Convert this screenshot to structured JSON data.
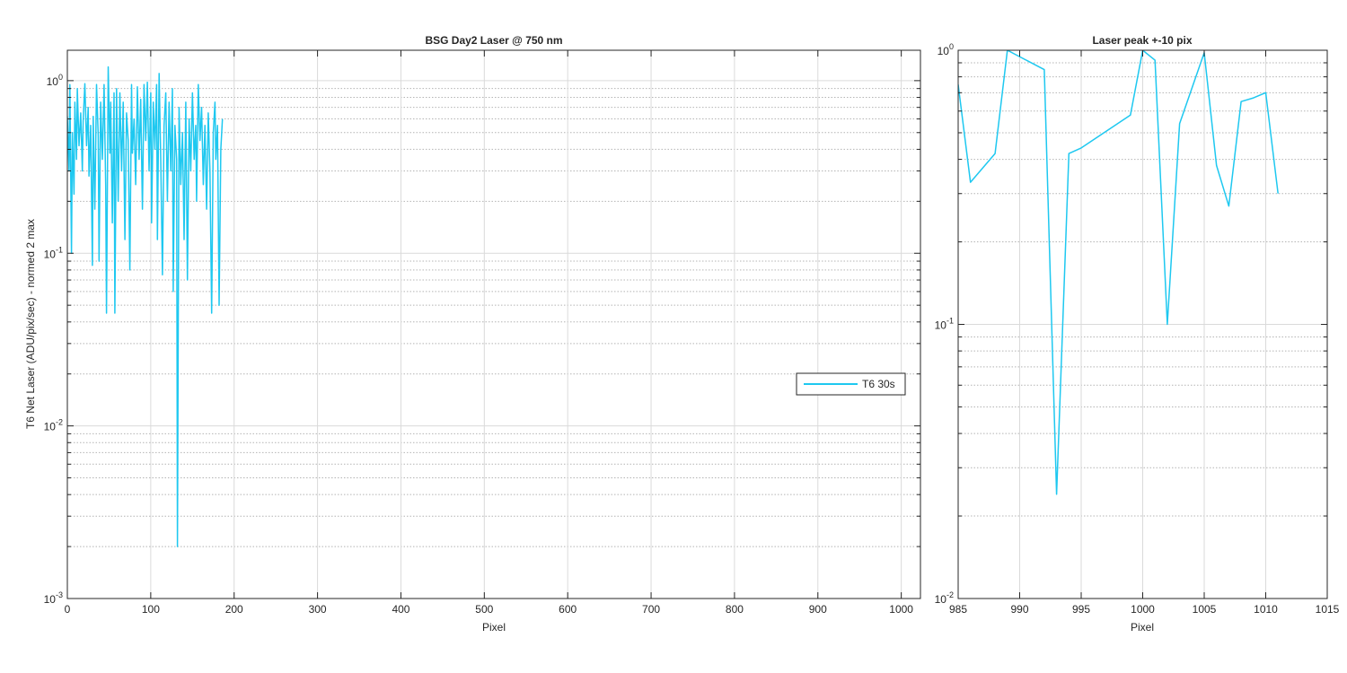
{
  "colors": {
    "series": "#1ec8f0",
    "major_grid": "#dadada",
    "minor_grid": "#b4b4b4",
    "axis": "#262626",
    "background": "#ffffff"
  },
  "chart_data": [
    {
      "type": "line",
      "title": "BSG  Day2 Laser @ 750 nm",
      "xlabel": "Pixel",
      "ylabel": "T6 Net Laser (ADU/pix/sec) - normed 2 max",
      "xlim": [
        0,
        1023
      ],
      "ylim": [
        0.001,
        1.5
      ],
      "yscale": "log",
      "grid": "on",
      "minor_grid": "on",
      "legend_position": "right",
      "x_ticks": [
        0,
        100,
        200,
        300,
        400,
        500,
        600,
        700,
        800,
        900,
        1000
      ],
      "y_ticks": [
        {
          "value": 0.001,
          "label_base": "10",
          "label_exp": "-3"
        },
        {
          "value": 0.01,
          "label_base": "10",
          "label_exp": "-2"
        },
        {
          "value": 0.1,
          "label_base": "10",
          "label_exp": "-1"
        },
        {
          "value": 1,
          "label_base": "10",
          "label_exp": "0"
        }
      ],
      "series": [
        {
          "name": "T6 30s",
          "points": [
            [
              0,
              0.62
            ],
            [
              2,
              0.3
            ],
            [
              3,
              0.95
            ],
            [
              5,
              0.1
            ],
            [
              6,
              0.5
            ],
            [
              8,
              0.22
            ],
            [
              9,
              0.75
            ],
            [
              11,
              0.35
            ],
            [
              12,
              0.9
            ],
            [
              14,
              0.42
            ],
            [
              16,
              0.65
            ],
            [
              18,
              0.3
            ],
            [
              19,
              0.58
            ],
            [
              21,
              0.96
            ],
            [
              23,
              0.42
            ],
            [
              25,
              0.7
            ],
            [
              26,
              0.28
            ],
            [
              28,
              0.55
            ],
            [
              30,
              0.085
            ],
            [
              31,
              0.62
            ],
            [
              33,
              0.18
            ],
            [
              35,
              0.95
            ],
            [
              37,
              0.48
            ],
            [
              38,
              0.09
            ],
            [
              40,
              0.75
            ],
            [
              42,
              0.35
            ],
            [
              44,
              0.95
            ],
            [
              46,
              0.25
            ],
            [
              47,
              0.045
            ],
            [
              49,
              1.2
            ],
            [
              51,
              0.38
            ],
            [
              52,
              0.75
            ],
            [
              54,
              0.15
            ],
            [
              56,
              0.85
            ],
            [
              57,
              0.045
            ],
            [
              59,
              0.9
            ],
            [
              61,
              0.2
            ],
            [
              63,
              0.85
            ],
            [
              65,
              0.3
            ],
            [
              67,
              0.75
            ],
            [
              69,
              0.12
            ],
            [
              71,
              0.65
            ],
            [
              73,
              0.45
            ],
            [
              75,
              0.08
            ],
            [
              77,
              0.95
            ],
            [
              78,
              0.38
            ],
            [
              80,
              0.6
            ],
            [
              82,
              0.25
            ],
            [
              84,
              0.92
            ],
            [
              86,
              0.35
            ],
            [
              88,
              0.78
            ],
            [
              90,
              0.18
            ],
            [
              92,
              0.95
            ],
            [
              94,
              0.45
            ],
            [
              96,
              0.98
            ],
            [
              98,
              0.3
            ],
            [
              100,
              0.85
            ],
            [
              101,
              0.15
            ],
            [
              103,
              0.75
            ],
            [
              105,
              0.4
            ],
            [
              107,
              0.95
            ],
            [
              108,
              0.12
            ],
            [
              110,
              1.1
            ],
            [
              112,
              0.35
            ],
            [
              114,
              0.075
            ],
            [
              116,
              0.55
            ],
            [
              118,
              0.85
            ],
            [
              120,
              0.2
            ],
            [
              122,
              0.75
            ],
            [
              124,
              0.3
            ],
            [
              126,
              0.9
            ],
            [
              127,
              0.06
            ],
            [
              129,
              0.55
            ],
            [
              131,
              0.35
            ],
            [
              132,
              0.002
            ],
            [
              134,
              0.7
            ],
            [
              136,
              0.25
            ],
            [
              138,
              0.5
            ],
            [
              140,
              0.12
            ],
            [
              142,
              0.75
            ],
            [
              144,
              0.07
            ],
            [
              146,
              0.6
            ],
            [
              148,
              0.3
            ],
            [
              150,
              0.85
            ],
            [
              152,
              0.35
            ],
            [
              154,
              0.55
            ],
            [
              155,
              0.2
            ],
            [
              157,
              0.95
            ],
            [
              159,
              0.45
            ],
            [
              161,
              0.7
            ],
            [
              163,
              0.25
            ],
            [
              165,
              0.55
            ],
            [
              167,
              0.18
            ],
            [
              169,
              0.65
            ],
            [
              171,
              0.3
            ],
            [
              173,
              0.045
            ],
            [
              175,
              0.5
            ],
            [
              177,
              0.75
            ],
            [
              178,
              0.35
            ],
            [
              180,
              0.55
            ],
            [
              182,
              0.05
            ],
            [
              184,
              0.4
            ],
            [
              186,
              0.6
            ]
          ]
        }
      ]
    },
    {
      "type": "line",
      "title": "Laser peak +-10 pix",
      "xlabel": "Pixel",
      "ylabel": "",
      "xlim": [
        985,
        1015
      ],
      "ylim": [
        0.01,
        1
      ],
      "yscale": "log",
      "grid": "on",
      "minor_grid": "on",
      "x_ticks": [
        985,
        990,
        995,
        1000,
        1005,
        1010,
        1015
      ],
      "y_ticks": [
        {
          "value": 0.01,
          "label_base": "10",
          "label_exp": "-2"
        },
        {
          "value": 0.1,
          "label_base": "10",
          "label_exp": "-1"
        },
        {
          "value": 1,
          "label_base": "10",
          "label_exp": "0"
        }
      ],
      "series": [
        {
          "name": "T6 30s",
          "points": [
            [
              985,
              0.75
            ],
            [
              986,
              0.33
            ],
            [
              988,
              0.42
            ],
            [
              989,
              1.0
            ],
            [
              992,
              0.85
            ],
            [
              993,
              0.024
            ],
            [
              994,
              0.42
            ],
            [
              995,
              0.44
            ],
            [
              999,
              0.58
            ],
            [
              1000,
              1.0
            ],
            [
              1001,
              0.92
            ],
            [
              1002,
              0.1
            ],
            [
              1003,
              0.54
            ],
            [
              1005,
              0.98
            ],
            [
              1006,
              0.38
            ],
            [
              1007,
              0.27
            ],
            [
              1008,
              0.65
            ],
            [
              1009,
              0.67
            ],
            [
              1010,
              0.7
            ],
            [
              1011,
              0.3
            ]
          ]
        }
      ]
    }
  ]
}
